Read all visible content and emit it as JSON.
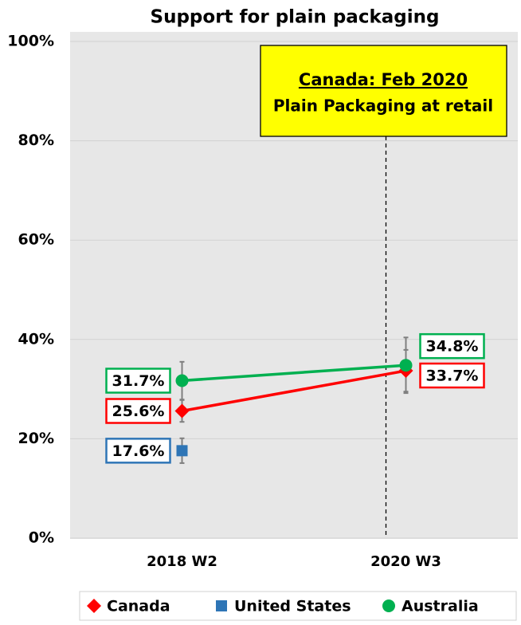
{
  "chart_data": {
    "type": "line",
    "title": "Support for plain packaging",
    "categories": [
      "2018 W2",
      "2020 W3"
    ],
    "series": [
      {
        "name": "Canada",
        "color": "#ff0000",
        "marker": "diamond",
        "values": [
          25.6,
          33.7
        ],
        "errors": [
          2.2,
          4.2
        ],
        "value_labels": [
          "25.6%",
          "33.7%"
        ]
      },
      {
        "name": "United States",
        "color": "#2e75b6",
        "marker": "square",
        "values": [
          17.6,
          null
        ],
        "errors": [
          2.5,
          null
        ],
        "value_labels": [
          "17.6%",
          null
        ]
      },
      {
        "name": "Australia",
        "color": "#00b050",
        "marker": "circle",
        "values": [
          31.7,
          34.8
        ],
        "errors": [
          3.8,
          5.6
        ],
        "value_labels": [
          "31.7%",
          "34.8%"
        ]
      }
    ],
    "ylim": [
      0,
      100
    ],
    "yticks": [
      {
        "value": 0,
        "label": "0%"
      },
      {
        "value": 20,
        "label": "20%"
      },
      {
        "value": 40,
        "label": "40%"
      },
      {
        "value": 60,
        "label": "60%"
      },
      {
        "value": 80,
        "label": "80%"
      },
      {
        "value": 100,
        "label": "100%"
      }
    ],
    "grid": true,
    "legend": "bottom",
    "annotation": {
      "title": "Canada: Feb 2020",
      "text": "Plain Packaging at retail"
    }
  }
}
